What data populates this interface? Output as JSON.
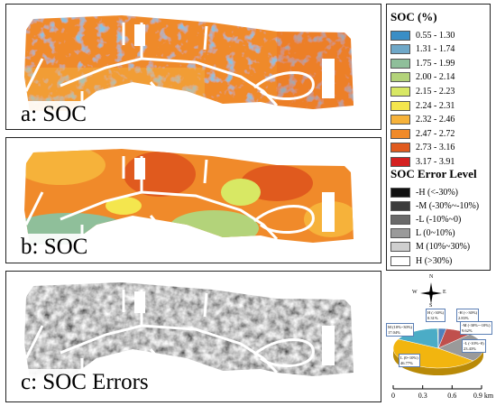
{
  "panels": [
    {
      "label": "a: SOC"
    },
    {
      "label": "b: SOC"
    },
    {
      "label": "c: SOC Errors"
    }
  ],
  "legend": {
    "soc_title": "SOC (%)",
    "soc_classes": [
      {
        "range": "0.55 - 1.30",
        "color": "#3a8ec6"
      },
      {
        "range": "1.31 - 1.74",
        "color": "#6fa8c8"
      },
      {
        "range": "1.75 - 1.99",
        "color": "#8fbf9a"
      },
      {
        "range": "2.00 - 2.14",
        "color": "#b3d37a"
      },
      {
        "range": "2.15 - 2.23",
        "color": "#d8e864"
      },
      {
        "range": "2.24 - 2.31",
        "color": "#f4e64e"
      },
      {
        "range": "2.32 - 2.46",
        "color": "#f6b23a"
      },
      {
        "range": "2.47 - 2.72",
        "color": "#f08a2a"
      },
      {
        "range": "2.73 - 3.16",
        "color": "#e05a1e"
      },
      {
        "range": "3.17 - 3.91",
        "color": "#d42020"
      }
    ],
    "error_title": "SOC Error Level",
    "error_classes": [
      {
        "range": "-H (<-30%)",
        "color": "#111111"
      },
      {
        "range": "-M (-30%~-10%)",
        "color": "#3c3c3c"
      },
      {
        "range": "-L (-10%~0)",
        "color": "#6a6a6a"
      },
      {
        "range": "L (0~10%)",
        "color": "#9a9a9a"
      },
      {
        "range": "M (10%~30%)",
        "color": "#cfcfcf"
      },
      {
        "range": "H (>30%)",
        "color": "#ffffff"
      }
    ]
  },
  "compass": {
    "n": "N",
    "s": "S",
    "e": "E",
    "w": "W"
  },
  "pie": {
    "type": "pie",
    "slices": [
      {
        "name": "-H (<-30%)",
        "value": 2.83,
        "color": "#4f81bd"
      },
      {
        "name": "-M (-30%~-10%)",
        "value": 9.62,
        "color": "#c0504d"
      },
      {
        "name": "-L (-10%~0)",
        "value": 23.43,
        "color": "#9a9a9a"
      },
      {
        "name": "L (0~10%)",
        "value": 46.77,
        "color": "#f2b50f"
      },
      {
        "name": "M (10%~30%)",
        "value": 17.04,
        "color": "#4bacc6"
      },
      {
        "name": "H (>30%)",
        "value": 0.31,
        "color": "#9bbb59"
      }
    ],
    "labels": [
      {
        "name": "H (>30%)",
        "value": "0.31%"
      },
      {
        "name": "-H (<-30%)",
        "value": "2.83%"
      },
      {
        "name": "M (10%~30%)",
        "value": "17.04%"
      },
      {
        "name": "-M (-30%~-10%)",
        "value": "9.62%"
      },
      {
        "name": "-L (-10%~0)",
        "value": "23.43%"
      },
      {
        "name": "L (0~10%)",
        "value": "46.77%"
      }
    ]
  },
  "scale": {
    "ticks": [
      "0",
      "0.3",
      "0.6",
      "0.9 km"
    ]
  }
}
